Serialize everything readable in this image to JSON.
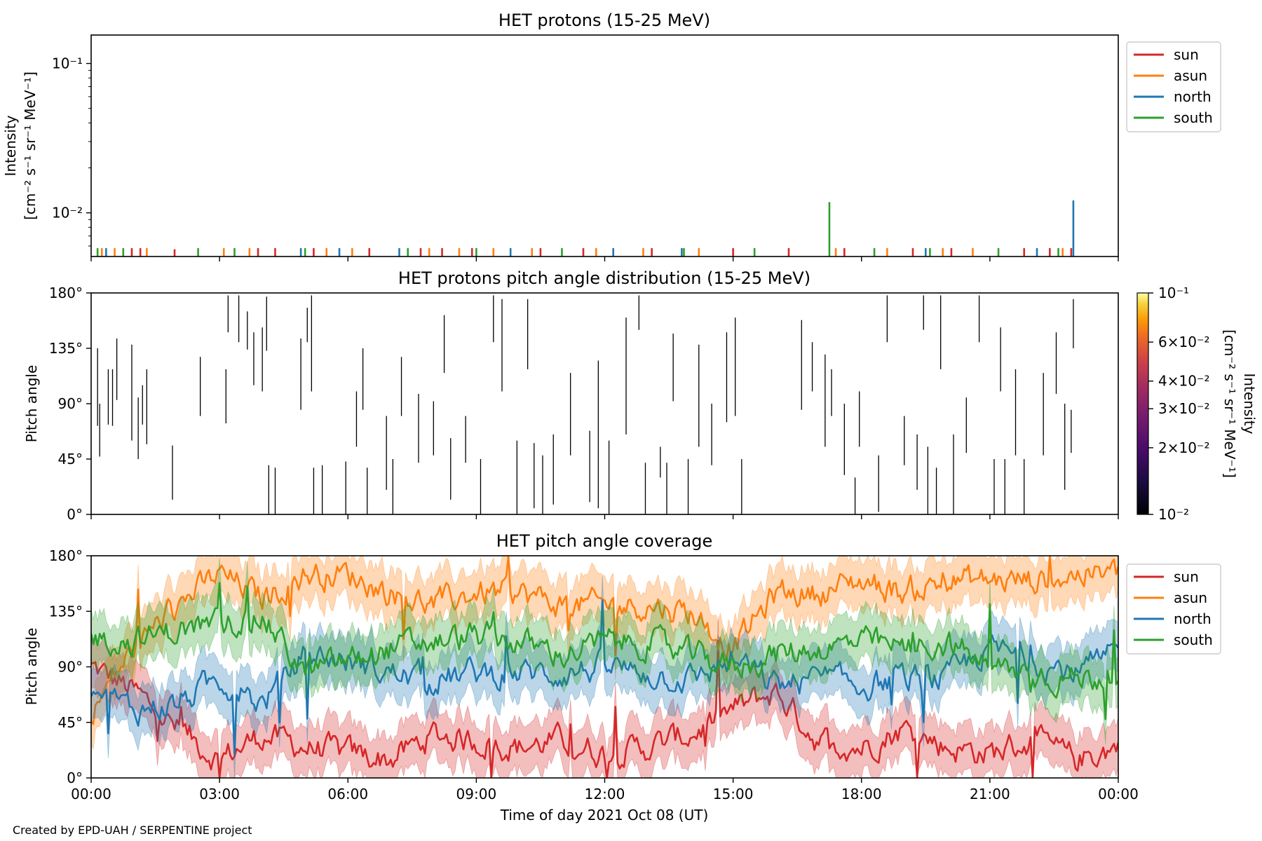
{
  "footer": "Created by EPD-UAH / SERPENTINE project",
  "colors": {
    "sun": "#d62728",
    "asun": "#ff7f0e",
    "north": "#1f77b4",
    "south": "#2ca02c"
  },
  "chart_data": [
    {
      "type": "line",
      "title": "HET protons (15-25 MeV)",
      "xlabel": "",
      "ylabel_line1": "Intensity",
      "ylabel_line2": "[cm⁻² s⁻¹ sr⁻¹ MeV⁻¹]",
      "yscale": "log",
      "ylim": [
        0.0051,
        0.155
      ],
      "xlim": [
        0,
        24
      ],
      "ytick_labels": [
        "10⁻¹",
        "10⁻²"
      ],
      "yticks": [
        0.1,
        0.01
      ],
      "legend": [
        "sun",
        "asun",
        "north",
        "south"
      ],
      "legend_position": "outside-top-right",
      "series": [
        {
          "name": "sun",
          "spikes": [
            [
              0.95,
              0.0058
            ],
            [
              1.15,
              0.0058
            ],
            [
              1.95,
              0.0057
            ],
            [
              3.9,
              0.0058
            ],
            [
              4.3,
              0.0058
            ],
            [
              5.2,
              0.0058
            ],
            [
              6.5,
              0.0058
            ],
            [
              7.7,
              0.0058
            ],
            [
              8.2,
              0.0058
            ],
            [
              8.9,
              0.0058
            ],
            [
              10.5,
              0.0058
            ],
            [
              11.5,
              0.0058
            ],
            [
              13.1,
              0.0058
            ],
            [
              15.0,
              0.0058
            ],
            [
              16.3,
              0.0058
            ],
            [
              17.6,
              0.0058
            ],
            [
              19.2,
              0.0058
            ],
            [
              20.1,
              0.0058
            ],
            [
              21.8,
              0.0058
            ],
            [
              22.4,
              0.0058
            ],
            [
              22.9,
              0.0058
            ]
          ]
        },
        {
          "name": "asun",
          "spikes": [
            [
              0.25,
              0.0058
            ],
            [
              0.55,
              0.0058
            ],
            [
              1.3,
              0.0058
            ],
            [
              3.1,
              0.0058
            ],
            [
              3.7,
              0.0058
            ],
            [
              5.5,
              0.0058
            ],
            [
              6.1,
              0.0058
            ],
            [
              7.9,
              0.0058
            ],
            [
              8.6,
              0.0058
            ],
            [
              9.4,
              0.0058
            ],
            [
              10.3,
              0.0058
            ],
            [
              11.8,
              0.0058
            ],
            [
              12.9,
              0.0058
            ],
            [
              14.2,
              0.0058
            ],
            [
              17.4,
              0.0058
            ],
            [
              18.6,
              0.0058
            ],
            [
              19.9,
              0.0058
            ],
            [
              20.6,
              0.0058
            ],
            [
              22.7,
              0.0058
            ]
          ]
        },
        {
          "name": "north",
          "spikes": [
            [
              0.35,
              0.0058
            ],
            [
              4.9,
              0.0058
            ],
            [
              5.8,
              0.0058
            ],
            [
              7.2,
              0.0058
            ],
            [
              9.8,
              0.0058
            ],
            [
              12.2,
              0.0058
            ],
            [
              13.8,
              0.0058
            ],
            [
              19.5,
              0.0058
            ],
            [
              22.1,
              0.0058
            ],
            [
              22.95,
              0.0121
            ]
          ]
        },
        {
          "name": "south",
          "spikes": [
            [
              0.15,
              0.0058
            ],
            [
              0.75,
              0.0058
            ],
            [
              2.5,
              0.0058
            ],
            [
              3.35,
              0.0058
            ],
            [
              5.0,
              0.0058
            ],
            [
              7.4,
              0.0058
            ],
            [
              9.0,
              0.0058
            ],
            [
              11.0,
              0.0058
            ],
            [
              13.85,
              0.0058
            ],
            [
              15.5,
              0.0058
            ],
            [
              17.25,
              0.0118
            ],
            [
              18.3,
              0.0058
            ],
            [
              19.6,
              0.0058
            ],
            [
              21.2,
              0.0058
            ],
            [
              22.6,
              0.0058
            ]
          ]
        }
      ]
    },
    {
      "type": "heatmap",
      "title": "HET protons pitch angle distribution (15-25 MeV)",
      "xlabel": "",
      "ylabel": "Pitch angle",
      "ylim": [
        0,
        180
      ],
      "xlim": [
        0,
        24
      ],
      "ytick_labels": [
        "0°",
        "45°",
        "90°",
        "135°",
        "180°"
      ],
      "yticks": [
        0,
        45,
        90,
        135,
        180
      ],
      "colorbar": {
        "label_line1": "Intensity",
        "label_line2": "[cm⁻² s⁻¹ sr⁻¹ MeV⁻¹]",
        "scale": "log",
        "range": [
          0.01,
          0.1
        ],
        "tick_labels": [
          "10⁻¹",
          "6×10⁻²",
          "4×10⁻²",
          "3×10⁻²",
          "2×10⁻²",
          "10⁻²"
        ],
        "ticks": [
          0.1,
          0.06,
          0.04,
          0.03,
          0.02,
          0.01
        ]
      },
      "segments": [
        [
          0.15,
          72,
          135
        ],
        [
          0.2,
          47,
          90
        ],
        [
          0.4,
          73,
          118
        ],
        [
          0.5,
          72,
          118
        ],
        [
          0.6,
          93,
          143
        ],
        [
          0.95,
          60,
          138
        ],
        [
          1.1,
          45,
          95
        ],
        [
          1.2,
          73,
          105
        ],
        [
          1.3,
          57,
          118
        ],
        [
          1.9,
          12,
          56
        ],
        [
          2.55,
          80,
          128
        ],
        [
          3.15,
          74,
          118
        ],
        [
          3.2,
          148,
          178
        ],
        [
          3.45,
          140,
          178
        ],
        [
          3.65,
          134,
          165
        ],
        [
          3.8,
          105,
          148
        ],
        [
          4.0,
          100,
          152
        ],
        [
          4.1,
          133,
          177
        ],
        [
          4.15,
          0,
          40
        ],
        [
          4.3,
          0,
          38
        ],
        [
          4.9,
          85,
          143
        ],
        [
          5.05,
          140,
          168
        ],
        [
          5.15,
          100,
          178
        ],
        [
          5.2,
          0,
          38
        ],
        [
          5.4,
          0,
          40
        ],
        [
          5.95,
          0,
          43
        ],
        [
          6.2,
          55,
          100
        ],
        [
          6.35,
          85,
          135
        ],
        [
          6.45,
          0,
          38
        ],
        [
          6.9,
          20,
          80
        ],
        [
          7.05,
          0,
          45
        ],
        [
          7.25,
          80,
          128
        ],
        [
          7.65,
          42,
          98
        ],
        [
          8.0,
          48,
          92
        ],
        [
          8.25,
          115,
          162
        ],
        [
          8.4,
          12,
          62
        ],
        [
          8.75,
          42,
          80
        ],
        [
          9.1,
          0,
          45
        ],
        [
          9.4,
          140,
          178
        ],
        [
          9.6,
          100,
          175
        ],
        [
          9.95,
          0,
          60
        ],
        [
          10.2,
          118,
          175
        ],
        [
          10.35,
          5,
          58
        ],
        [
          10.55,
          0,
          48
        ],
        [
          10.8,
          8,
          65
        ],
        [
          11.2,
          48,
          115
        ],
        [
          11.65,
          10,
          68
        ],
        [
          11.85,
          5,
          125
        ],
        [
          12.1,
          0,
          60
        ],
        [
          12.5,
          65,
          160
        ],
        [
          12.8,
          150,
          178
        ],
        [
          12.95,
          0,
          42
        ],
        [
          13.3,
          30,
          55
        ],
        [
          13.45,
          0,
          42
        ],
        [
          13.6,
          92,
          147
        ],
        [
          13.95,
          0,
          45
        ],
        [
          14.2,
          55,
          138
        ],
        [
          14.5,
          40,
          90
        ],
        [
          14.85,
          75,
          148
        ],
        [
          15.05,
          80,
          160
        ],
        [
          15.2,
          0,
          45
        ],
        [
          16.6,
          85,
          158
        ],
        [
          16.85,
          100,
          140
        ],
        [
          17.15,
          55,
          130
        ],
        [
          17.3,
          80,
          118
        ],
        [
          17.6,
          32,
          90
        ],
        [
          17.85,
          0,
          30
        ],
        [
          17.95,
          55,
          100
        ],
        [
          18.4,
          2,
          48
        ],
        [
          18.6,
          140,
          178
        ],
        [
          19.0,
          40,
          80
        ],
        [
          19.3,
          20,
          65
        ],
        [
          19.45,
          150,
          178
        ],
        [
          19.55,
          0,
          55
        ],
        [
          19.75,
          0,
          38
        ],
        [
          19.85,
          118,
          178
        ],
        [
          20.15,
          0,
          65
        ],
        [
          20.45,
          50,
          95
        ],
        [
          20.75,
          140,
          178
        ],
        [
          21.1,
          0,
          45
        ],
        [
          21.25,
          100,
          152
        ],
        [
          21.35,
          0,
          45
        ],
        [
          21.6,
          48,
          118
        ],
        [
          21.8,
          0,
          45
        ],
        [
          22.25,
          48,
          115
        ],
        [
          22.55,
          98,
          148
        ],
        [
          22.75,
          20,
          90
        ],
        [
          22.9,
          50,
          85
        ],
        [
          22.95,
          135,
          175
        ]
      ]
    },
    {
      "type": "area",
      "title": "HET pitch angle coverage",
      "xlabel": "Time of day 2021 Oct 08 (UT)",
      "ylabel": "Pitch angle",
      "ylim": [
        0,
        180
      ],
      "xlim": [
        0,
        24
      ],
      "ytick_labels": [
        "0°",
        "45°",
        "90°",
        "135°",
        "180°"
      ],
      "yticks": [
        0,
        45,
        90,
        135,
        180
      ],
      "xtick_labels": [
        "00:00",
        "03:00",
        "06:00",
        "09:00",
        "12:00",
        "15:00",
        "18:00",
        "21:00",
        "00:00"
      ],
      "xticks": [
        0,
        3,
        6,
        9,
        12,
        15,
        18,
        21,
        24
      ],
      "band_halfwidth_deg": 20,
      "legend": [
        "sun",
        "asun",
        "north",
        "south"
      ],
      "legend_position": "outside-top-right",
      "series": [
        {
          "name": "sun",
          "x": [
            0,
            1,
            2,
            3,
            4,
            5,
            6,
            7,
            8,
            9,
            10,
            11,
            12,
            13,
            14,
            15,
            16,
            17,
            18,
            19,
            20,
            21,
            22,
            23,
            24
          ],
          "y": [
            90,
            70,
            40,
            15,
            35,
            25,
            20,
            15,
            35,
            30,
            25,
            30,
            20,
            25,
            35,
            55,
            70,
            30,
            25,
            40,
            25,
            20,
            30,
            15,
            25
          ]
        },
        {
          "name": "asun",
          "x": [
            0,
            1,
            2,
            3,
            4,
            5,
            6,
            7,
            8,
            9,
            10,
            11,
            12,
            13,
            14,
            15,
            16,
            17,
            18,
            19,
            20,
            21,
            22,
            23,
            24
          ],
          "y": [
            55,
            105,
            140,
            165,
            145,
            165,
            165,
            150,
            140,
            150,
            150,
            140,
            140,
            140,
            135,
            105,
            150,
            150,
            160,
            150,
            160,
            160,
            160,
            165,
            165
          ]
        },
        {
          "name": "north",
          "x": [
            0,
            1,
            2,
            3,
            4,
            5,
            6,
            7,
            8,
            9,
            10,
            11,
            12,
            13,
            14,
            15,
            16,
            17,
            18,
            19,
            20,
            21,
            22,
            23,
            24
          ],
          "y": [
            70,
            55,
            60,
            80,
            60,
            100,
            95,
            85,
            80,
            85,
            85,
            85,
            90,
            85,
            80,
            95,
            75,
            80,
            75,
            80,
            80,
            105,
            95,
            85,
            100
          ]
        },
        {
          "name": "south",
          "x": [
            0,
            1,
            2,
            3,
            4,
            5,
            6,
            7,
            8,
            9,
            10,
            11,
            12,
            13,
            14,
            15,
            16,
            17,
            18,
            19,
            20,
            21,
            22,
            23,
            24
          ],
          "y": [
            115,
            110,
            120,
            125,
            130,
            85,
            95,
            105,
            110,
            115,
            110,
            100,
            110,
            110,
            100,
            90,
            100,
            105,
            110,
            105,
            110,
            90,
            85,
            80,
            85
          ]
        }
      ]
    }
  ]
}
